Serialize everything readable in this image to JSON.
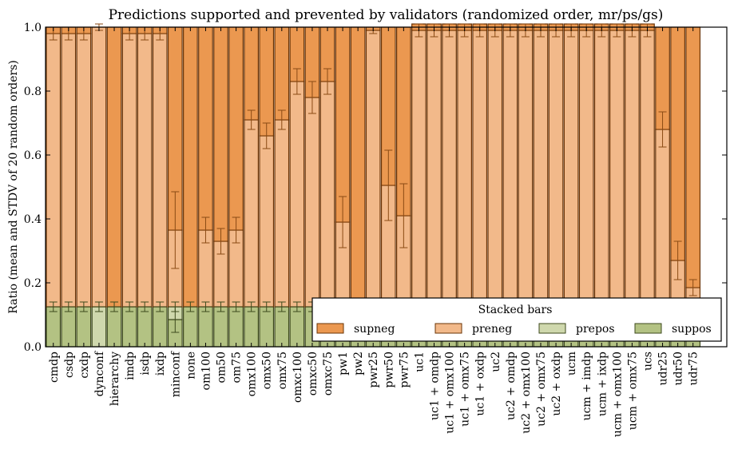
{
  "chart_data": {
    "type": "bar",
    "stacked": true,
    "title": "Predictions supported and prevented by validators (randomized order, mr/ps/gs)",
    "xlabel": "",
    "ylabel": "Ratio (mean and STDV of 20 random orders)",
    "ylim": [
      0.0,
      1.0
    ],
    "yticks": [
      "0.0",
      "0.2",
      "0.4",
      "0.6",
      "0.8",
      "1.0"
    ],
    "grid": false,
    "legend": {
      "title": "Stacked bars",
      "placement": "bottom-right",
      "entries": [
        "supneg",
        "preneg",
        "prepos",
        "suppos"
      ]
    },
    "colors": {
      "supneg": "#eb9850",
      "preneg": "#f2b98a",
      "prepos": "#cfd8ad",
      "suppos": "#b3c283",
      "edge_orange": "#6b3406",
      "edge_green": "#3d4a1c"
    },
    "categories": [
      "cmdp",
      "csdp",
      "cxdp",
      "dynconf",
      "hierarchy",
      "imdp",
      "isdp",
      "ixdp",
      "minconf",
      "none",
      "om100",
      "om50",
      "om75",
      "omx100",
      "omx50",
      "omx75",
      "omxc100",
      "omxc50",
      "omxc75",
      "pw1",
      "pw2",
      "pwr25",
      "pwr50",
      "pwr75",
      "uc1",
      "uc1 + omdp",
      "uc1 + omx100",
      "uc1 + omx75",
      "uc1 + oxdp",
      "uc2",
      "uc2 + omdp",
      "uc2 + omx100",
      "uc2 + omx75",
      "uc2 + oxdp",
      "ucm",
      "ucm + imdp",
      "ucm + ixdp",
      "ucm + omx100",
      "ucm + omx75",
      "ucs",
      "udr25",
      "udr50",
      "udr75"
    ],
    "series": [
      {
        "name": "suppos",
        "values": [
          0.125,
          0.125,
          0.125,
          0.0,
          0.125,
          0.125,
          0.125,
          0.125,
          0.085,
          0.125,
          0.125,
          0.125,
          0.125,
          0.125,
          0.125,
          0.125,
          0.125,
          0.125,
          0.125,
          0.125,
          0.125,
          0.125,
          0.125,
          0.125,
          0.125,
          0.125,
          0.125,
          0.125,
          0.125,
          0.125,
          0.125,
          0.125,
          0.125,
          0.125,
          0.125,
          0.125,
          0.125,
          0.125,
          0.125,
          0.125,
          0.125,
          0.125,
          0.125
        ],
        "stdv": [
          0.015,
          0.015,
          0.015,
          0.0,
          0.015,
          0.015,
          0.015,
          0.015,
          0.04,
          0.015,
          0.015,
          0.015,
          0.015,
          0.015,
          0.015,
          0.015,
          0.015,
          0.015,
          0.015,
          0.015,
          0.015,
          0.015,
          0.015,
          0.015,
          0.015,
          0.015,
          0.015,
          0.015,
          0.015,
          0.015,
          0.015,
          0.015,
          0.015,
          0.015,
          0.015,
          0.015,
          0.015,
          0.015,
          0.015,
          0.015,
          0.015,
          0.015,
          0.015
        ]
      },
      {
        "name": "prepos",
        "values": [
          0.0,
          0.0,
          0.0,
          0.125,
          0.0,
          0.0,
          0.0,
          0.0,
          0.04,
          0.0,
          0.0,
          0.0,
          0.0,
          0.0,
          0.0,
          0.0,
          0.0,
          0.0,
          0.0,
          0.0,
          0.0,
          0.0,
          0.0,
          0.0,
          0.0,
          0.0,
          0.0,
          0.0,
          0.0,
          0.0,
          0.0,
          0.0,
          0.0,
          0.0,
          0.0,
          0.0,
          0.0,
          0.0,
          0.0,
          0.0,
          0.0,
          0.0,
          0.0
        ],
        "stdv": [
          0,
          0,
          0,
          0.015,
          0,
          0,
          0,
          0,
          0.015,
          0,
          0,
          0,
          0,
          0,
          0,
          0,
          0,
          0,
          0,
          0,
          0,
          0,
          0,
          0,
          0,
          0,
          0,
          0,
          0,
          0,
          0,
          0,
          0,
          0,
          0,
          0,
          0,
          0,
          0,
          0,
          0,
          0,
          0
        ]
      },
      {
        "name": "preneg",
        "values": [
          0.855,
          0.855,
          0.855,
          0.875,
          0.0,
          0.855,
          0.855,
          0.855,
          0.24,
          0.0,
          0.24,
          0.205,
          0.24,
          0.585,
          0.535,
          0.585,
          0.705,
          0.655,
          0.705,
          0.265,
          0.0,
          0.865,
          0.38,
          0.285,
          0.865,
          0.865,
          0.865,
          0.865,
          0.865,
          0.865,
          0.865,
          0.865,
          0.865,
          0.865,
          0.865,
          0.865,
          0.865,
          0.865,
          0.865,
          0.865,
          0.555,
          0.145,
          0.06
        ],
        "stdv": [
          0.02,
          0.02,
          0.02,
          0.01,
          0,
          0.02,
          0.02,
          0.02,
          0.12,
          0,
          0.04,
          0.04,
          0.04,
          0.03,
          0.04,
          0.03,
          0.04,
          0.05,
          0.04,
          0.08,
          0,
          0.01,
          0.11,
          0.1,
          0.02,
          0.02,
          0.02,
          0.02,
          0.02,
          0.02,
          0.02,
          0.02,
          0.02,
          0.02,
          0.02,
          0.02,
          0.02,
          0.02,
          0.02,
          0.02,
          0.055,
          0.06,
          0.025
        ]
      },
      {
        "name": "supneg",
        "values": [
          0.02,
          0.02,
          0.02,
          0.0,
          0.875,
          0.02,
          0.02,
          0.02,
          0.635,
          0.875,
          0.635,
          0.67,
          0.635,
          0.29,
          0.34,
          0.29,
          0.17,
          0.22,
          0.17,
          0.61,
          0.875,
          0.01,
          0.495,
          0.59,
          0.02,
          0.02,
          0.02,
          0.02,
          0.02,
          0.02,
          0.02,
          0.02,
          0.02,
          0.02,
          0.02,
          0.02,
          0.02,
          0.02,
          0.02,
          0.02,
          0.32,
          0.73,
          0.815
        ]
      }
    ]
  }
}
